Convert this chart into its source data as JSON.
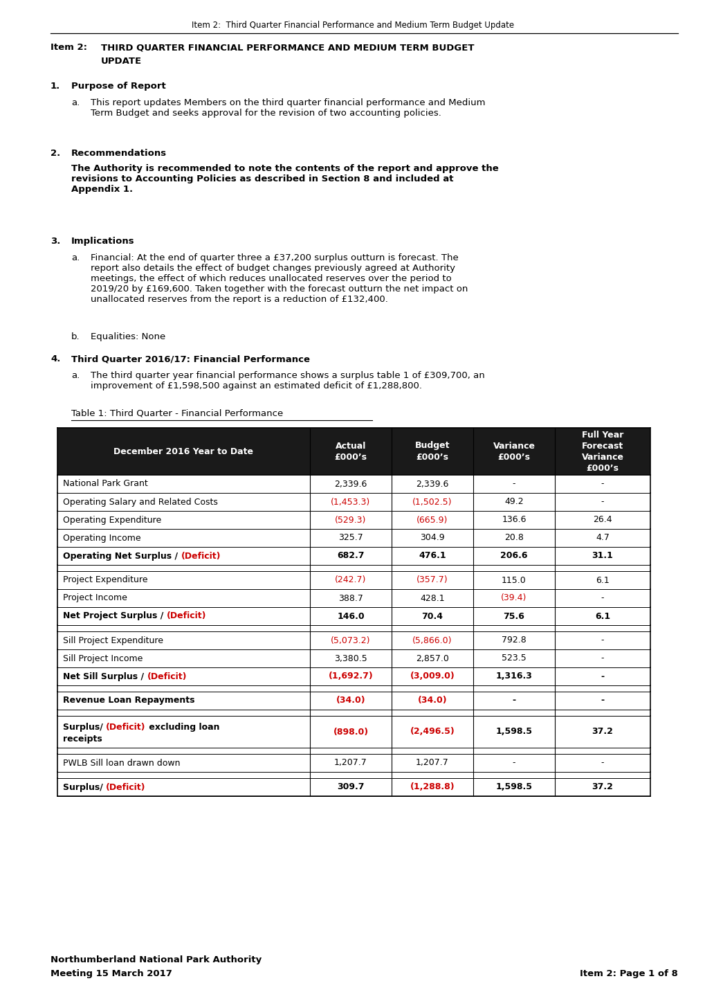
{
  "header_line": "Item 2:  Third Quarter Financial Performance and Medium Term Budget Update",
  "title_label": "Item 2:",
  "title_line1": "THIRD QUARTER FINANCIAL PERFORMANCE AND MEDIUM TERM BUDGET",
  "title_line2": "UPDATE",
  "section1_num": "1.",
  "section1_head": "Purpose of Report",
  "section1a_a": "a.",
  "section1a_text": "This report updates Members on the third quarter financial performance and Medium\nTerm Budget and seeks approval for the revision of two accounting policies.",
  "section2_num": "2.",
  "section2_head": "Recommendations",
  "section2_body": "The Authority is recommended to note the contents of the report and approve the\nrevisions to Accounting Policies as described in Section 8 and included at\nAppendix 1.",
  "section3_num": "3.",
  "section3_head": "Implications",
  "section3a_a": "a.",
  "section3a_text": "Financial: At the end of quarter three a £37,200 surplus outturn is forecast. The\nreport also details the effect of budget changes previously agreed at Authority\nmeetings, the effect of which reduces unallocated reserves over the period to\n2019/20 by £169,600. Taken together with the forecast outturn the net impact on\nunallocated reserves from the report is a reduction of £132,400.",
  "section3b_b": "b.",
  "section3b_text": "Equalities: None",
  "section4_num": "4.",
  "section4_head": "Third Quarter 2016/17: Financial Performance",
  "section4a_a": "a.",
  "section4a_text": "The third quarter year financial performance shows a surplus table 1 of £309,700, an\nimprovement of £1,598,500 against an estimated deficit of £1,288,800.",
  "table_label": "Table 1: Third Quarter - Financial Performance",
  "table_header_col0": "December 2016 Year to Date",
  "table_header_col1": "Actual\n£000’s",
  "table_header_col2": "Budget\n£000’s",
  "table_header_col3": "Variance\n£000’s",
  "table_header_col4": "Full Year\nForecast\nVariance\n£000’s",
  "table_rows": [
    {
      "label": "National Park Grant",
      "c1": "2,339.6",
      "c2": "2,339.6",
      "c3": "-",
      "c4": "-",
      "bold": false,
      "red": []
    },
    {
      "label": "Operating Salary and Related Costs",
      "c1": "(1,453.3)",
      "c2": "(1,502.5)",
      "c3": "49.2",
      "c4": "-",
      "bold": false,
      "red": [
        1,
        2
      ]
    },
    {
      "label": "Operating Expenditure",
      "c1": "(529.3)",
      "c2": "(665.9)",
      "c3": "136.6",
      "c4": "26.4",
      "bold": false,
      "red": [
        1,
        2
      ]
    },
    {
      "label": "Operating Income",
      "c1": "325.7",
      "c2": "304.9",
      "c3": "20.8",
      "c4": "4.7",
      "bold": false,
      "red": []
    },
    {
      "label": "Operating Net Surplus / (Deficit)",
      "c1": "682.7",
      "c2": "476.1",
      "c3": "206.6",
      "c4": "31.1",
      "bold": true,
      "red": [],
      "deficit_label": true
    },
    {
      "spacer": true
    },
    {
      "label": "Project Expenditure",
      "c1": "(242.7)",
      "c2": "(357.7)",
      "c3": "115.0",
      "c4": "6.1",
      "bold": false,
      "red": [
        1,
        2
      ]
    },
    {
      "label": "Project Income",
      "c1": "388.7",
      "c2": "428.1",
      "c3": "(39.4)",
      "c4": "-",
      "bold": false,
      "red": [
        3
      ]
    },
    {
      "label": "Net Project Surplus / (Deficit)",
      "c1": "146.0",
      "c2": "70.4",
      "c3": "75.6",
      "c4": "6.1",
      "bold": true,
      "red": [],
      "deficit_label": true
    },
    {
      "spacer": true
    },
    {
      "label": "Sill Project Expenditure",
      "c1": "(5,073.2)",
      "c2": "(5,866.0)",
      "c3": "792.8",
      "c4": "-",
      "bold": false,
      "red": [
        1,
        2
      ]
    },
    {
      "label": "Sill Project Income",
      "c1": "3,380.5",
      "c2": "2,857.0",
      "c3": "523.5",
      "c4": "-",
      "bold": false,
      "red": []
    },
    {
      "label": "Net Sill Surplus / (Deficit)",
      "c1": "(1,692.7)",
      "c2": "(3,009.0)",
      "c3": "1,316.3",
      "c4": "-",
      "bold": true,
      "red": [
        1,
        2
      ],
      "deficit_label": true
    },
    {
      "spacer": true
    },
    {
      "label": "Revenue Loan Repayments",
      "c1": "(34.0)",
      "c2": "(34.0)",
      "c3": "-",
      "c4": "-",
      "bold": true,
      "red": [
        1,
        2
      ]
    },
    {
      "spacer": true
    },
    {
      "label": "Surplus/ (Deficit) excluding loan\nreceipts",
      "c1": "(898.0)",
      "c2": "(2,496.5)",
      "c3": "1,598.5",
      "c4": "37.2",
      "bold": true,
      "red": [
        1,
        2
      ],
      "deficit_label": true,
      "multiline": true
    },
    {
      "spacer": true
    },
    {
      "label": "PWLB Sill loan drawn down",
      "c1": "1,207.7",
      "c2": "1,207.7",
      "c3": "-",
      "c4": "-",
      "bold": false,
      "red": []
    },
    {
      "spacer": true
    },
    {
      "label": "Surplus/ (Deficit)",
      "c1": "309.7",
      "c2": "(1,288.8)",
      "c3": "1,598.5",
      "c4": "37.2",
      "bold": true,
      "red": [
        2
      ],
      "deficit_label": true
    }
  ],
  "footer_left1": "Northumberland National Park Authority",
  "footer_left2": "Meeting 15 March 2017",
  "footer_right": "Item 2: Page 1 of 8",
  "bg_color": "#ffffff",
  "hdr_bg": "#1a1a1a",
  "hdr_fg": "#ffffff",
  "border_color": "#000000",
  "red_color": "#cc0000",
  "black_color": "#000000"
}
